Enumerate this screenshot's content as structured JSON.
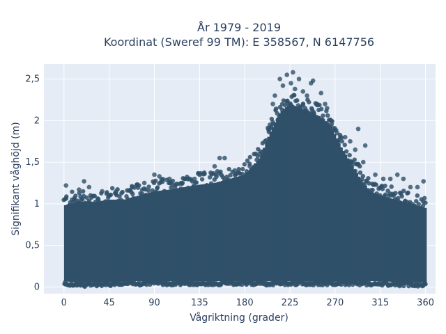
{
  "chart_data": {
    "type": "scatter",
    "title_line1": "År 1979 - 2019",
    "title_line2": "Koordinat (Sweref 99 TM): E 358567, N 6147756",
    "xlabel": "Vågriktning (grader)",
    "ylabel": "Signifikant våghöjd (m)",
    "xlim": [
      -20,
      370
    ],
    "ylim": [
      -0.08,
      2.68
    ],
    "x_ticks": [
      0,
      45,
      90,
      135,
      180,
      225,
      270,
      315,
      360
    ],
    "x_tick_labels": [
      "0",
      "45",
      "90",
      "135",
      "180",
      "225",
      "270",
      "315",
      "360"
    ],
    "y_ticks": [
      0,
      0.5,
      1,
      1.5,
      2,
      2.5
    ],
    "y_tick_labels": [
      "0",
      "0,5",
      "1",
      "1,5",
      "2",
      "2,5"
    ],
    "grid": true,
    "marker_color": "#2f5068",
    "plot_background": "#e5ecf6",
    "envelope": {
      "x": [
        0,
        15,
        30,
        45,
        60,
        75,
        90,
        105,
        120,
        135,
        150,
        165,
        180,
        195,
        205,
        215,
        225,
        235,
        245,
        255,
        265,
        275,
        285,
        295,
        305,
        315,
        330,
        345,
        360
      ],
      "y_max": [
        0.98,
        1.03,
        1.02,
        1.05,
        1.05,
        1.1,
        1.15,
        1.17,
        1.2,
        1.23,
        1.25,
        1.3,
        1.35,
        1.55,
        1.85,
        2.1,
        2.2,
        2.15,
        2.1,
        2.05,
        1.95,
        1.7,
        1.5,
        1.3,
        1.15,
        1.1,
        1.05,
        1.0,
        0.95
      ],
      "y_min": [
        0.07,
        0.05,
        0.06,
        0.06,
        0.07,
        0.07,
        0.07,
        0.07,
        0.07,
        0.07,
        0.07,
        0.07,
        0.07,
        0.07,
        0.07,
        0.07,
        0.07,
        0.07,
        0.07,
        0.07,
        0.07,
        0.07,
        0.07,
        0.07,
        0.07,
        0.07,
        0.06,
        0.06,
        0.05
      ]
    },
    "outliers": [
      {
        "x": 2,
        "y": 1.22
      },
      {
        "x": 8,
        "y": 1.05
      },
      {
        "x": 15,
        "y": 1.17
      },
      {
        "x": 20,
        "y": 1.27
      },
      {
        "x": 25,
        "y": 1.2
      },
      {
        "x": 38,
        "y": 1.15
      },
      {
        "x": 52,
        "y": 1.15
      },
      {
        "x": 68,
        "y": 1.2
      },
      {
        "x": 80,
        "y": 1.25
      },
      {
        "x": 90,
        "y": 1.35
      },
      {
        "x": 95,
        "y": 1.33
      },
      {
        "x": 105,
        "y": 1.3
      },
      {
        "x": 118,
        "y": 1.25
      },
      {
        "x": 130,
        "y": 1.3
      },
      {
        "x": 140,
        "y": 1.36
      },
      {
        "x": 150,
        "y": 1.45
      },
      {
        "x": 155,
        "y": 1.55
      },
      {
        "x": 160,
        "y": 1.55
      },
      {
        "x": 170,
        "y": 1.4
      },
      {
        "x": 185,
        "y": 1.45
      },
      {
        "x": 195,
        "y": 1.6
      },
      {
        "x": 200,
        "y": 1.75
      },
      {
        "x": 205,
        "y": 1.95
      },
      {
        "x": 208,
        "y": 2.2
      },
      {
        "x": 210,
        "y": 2.3
      },
      {
        "x": 215,
        "y": 2.5
      },
      {
        "x": 218,
        "y": 2.42
      },
      {
        "x": 222,
        "y": 2.55
      },
      {
        "x": 226,
        "y": 2.45
      },
      {
        "x": 228,
        "y": 2.58
      },
      {
        "x": 230,
        "y": 2.38
      },
      {
        "x": 234,
        "y": 2.5
      },
      {
        "x": 238,
        "y": 2.35
      },
      {
        "x": 242,
        "y": 2.3
      },
      {
        "x": 246,
        "y": 2.45
      },
      {
        "x": 248,
        "y": 2.48
      },
      {
        "x": 252,
        "y": 2.2
      },
      {
        "x": 256,
        "y": 2.33
      },
      {
        "x": 260,
        "y": 2.2
      },
      {
        "x": 262,
        "y": 2.15
      },
      {
        "x": 266,
        "y": 2.0
      },
      {
        "x": 272,
        "y": 1.85
      },
      {
        "x": 280,
        "y": 1.8
      },
      {
        "x": 285,
        "y": 1.75
      },
      {
        "x": 290,
        "y": 1.65
      },
      {
        "x": 293,
        "y": 1.9
      },
      {
        "x": 298,
        "y": 1.5
      },
      {
        "x": 300,
        "y": 1.7
      },
      {
        "x": 310,
        "y": 1.35
      },
      {
        "x": 318,
        "y": 1.3
      },
      {
        "x": 325,
        "y": 1.3
      },
      {
        "x": 332,
        "y": 1.35
      },
      {
        "x": 338,
        "y": 1.3
      },
      {
        "x": 345,
        "y": 1.2
      },
      {
        "x": 352,
        "y": 1.2
      },
      {
        "x": 358,
        "y": 1.27
      }
    ]
  }
}
